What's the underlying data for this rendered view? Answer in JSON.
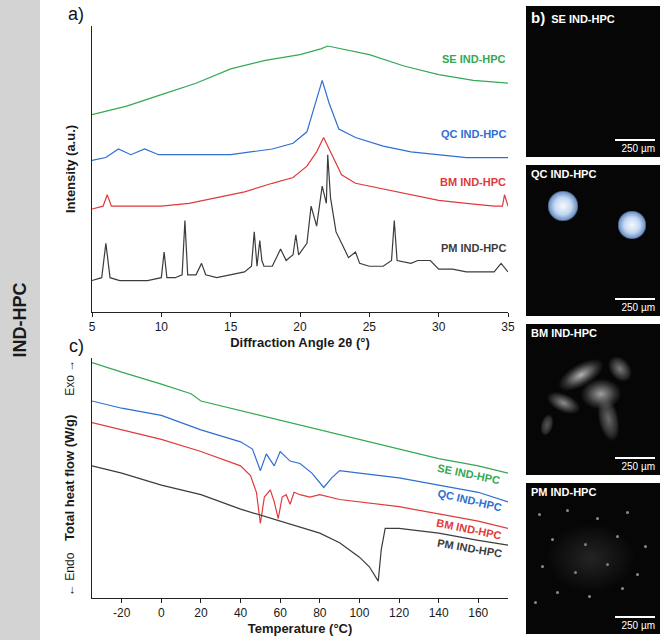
{
  "side_label": "IND-HPC",
  "chart_data": [
    {
      "type": "line",
      "panel": "a)",
      "xlabel": "Diffraction Angle 2θ (°)",
      "ylabel": "Intensity (a.u.)",
      "xlim": [
        5,
        35
      ],
      "xticks": [
        5,
        10,
        15,
        20,
        25,
        30,
        35
      ],
      "ylim": [
        0,
        100
      ],
      "yticks": [],
      "tick_labels": "x",
      "series": [
        {
          "name": "SE IND-HPC",
          "color": "#34a853",
          "x": [
            5,
            7.5,
            10,
            12.5,
            15,
            17.5,
            20,
            21.5,
            22,
            23,
            25,
            27.5,
            30,
            32.5,
            35
          ],
          "values": [
            69,
            72,
            76,
            80,
            85,
            88,
            90,
            92,
            93,
            92,
            90,
            86,
            83,
            81,
            80
          ]
        },
        {
          "name": "QC IND-HPC",
          "color": "#2e6fd1",
          "x": [
            5,
            6,
            6.9,
            7.8,
            8.8,
            9.8,
            12,
            15,
            18,
            19.5,
            20.5,
            21.1,
            21.6,
            22.1,
            22.8,
            24,
            26,
            28,
            30,
            32,
            35
          ],
          "values": [
            53,
            54,
            57,
            55,
            57,
            55,
            55,
            55,
            57,
            59,
            63,
            73,
            81,
            73,
            64,
            61,
            58,
            56,
            55,
            54,
            54
          ]
        },
        {
          "name": "BM IND-HPC",
          "color": "#e03a3a",
          "x": [
            5,
            5.8,
            6.1,
            6.4,
            8,
            10,
            12,
            14,
            16,
            18,
            19.5,
            20.5,
            21.2,
            21.7,
            22.2,
            23,
            24,
            26,
            28,
            30,
            32,
            34,
            34.6,
            34.75,
            35
          ],
          "values": [
            36,
            37,
            41,
            37,
            37,
            37,
            38,
            40,
            42,
            45,
            47,
            51,
            56,
            61,
            56,
            48,
            45,
            43,
            41,
            39,
            38,
            37,
            37,
            41,
            37
          ]
        },
        {
          "name": "PM IND-HPC",
          "color": "#3c3c3c",
          "x": [
            5,
            5.7,
            6.0,
            6.3,
            7,
            8,
            9,
            10,
            10.2,
            10.4,
            11,
            11.5,
            11.7,
            11.9,
            12.5,
            12.9,
            13.2,
            14,
            15,
            16,
            16.5,
            16.7,
            16.9,
            17.1,
            17.25,
            17.4,
            18,
            18.6,
            19,
            19.5,
            19.7,
            19.9,
            20.5,
            20.8,
            21.2,
            21.6,
            21.9,
            22.0,
            22.2,
            22.6,
            23,
            23.5,
            24,
            24.3,
            25,
            26,
            26.6,
            26.8,
            27,
            28,
            28.5,
            29.4,
            30,
            31,
            32,
            33,
            34,
            34.5,
            35
          ],
          "values": [
            11,
            12,
            24,
            12,
            11,
            11,
            11,
            12,
            21,
            12,
            12,
            13,
            32,
            13,
            13,
            17,
            13,
            12,
            13,
            14,
            16,
            28,
            16,
            25,
            18,
            16,
            16,
            22,
            18,
            20,
            27,
            20,
            24,
            37,
            30,
            44,
            38,
            55,
            40,
            28,
            24,
            19,
            21,
            17,
            16,
            16,
            18,
            32,
            18,
            17,
            18,
            18,
            15,
            15,
            14,
            14,
            14,
            17,
            14
          ]
        }
      ]
    },
    {
      "type": "line",
      "panel": "c)",
      "xlabel": "Temperature (°C)",
      "ylabel": "Total heat flow (W/g)",
      "annotations": [
        "Exo →",
        "← Endo"
      ],
      "xlim": [
        -35,
        175
      ],
      "xticks": [
        -20,
        0,
        20,
        40,
        60,
        80,
        100,
        120,
        140,
        160
      ],
      "ylim": [
        0,
        100
      ],
      "yticks": [],
      "tick_labels": "x",
      "series": [
        {
          "name": "SE IND-HPC",
          "color": "#34a853",
          "x": [
            -35,
            -20,
            0,
            15,
            20,
            40,
            60,
            80,
            100,
            120,
            140,
            160,
            175
          ],
          "values": [
            98,
            94,
            89,
            85,
            82,
            78,
            74,
            70,
            66,
            62,
            58,
            55,
            52
          ]
        },
        {
          "name": "QC IND-HPC",
          "color": "#2e6fd1",
          "x": [
            -35,
            -20,
            0,
            20,
            40,
            46,
            50,
            53,
            57,
            60,
            65,
            70,
            76,
            82,
            86,
            90,
            100,
            120,
            140,
            160,
            175
          ],
          "values": [
            82,
            79,
            76,
            70,
            65,
            62,
            53,
            60,
            55,
            61,
            57,
            56,
            52,
            46,
            50,
            53,
            52,
            50,
            47,
            44,
            40
          ]
        },
        {
          "name": "BM IND-HPC",
          "color": "#e03a3a",
          "x": [
            -35,
            -20,
            0,
            20,
            40,
            45,
            48,
            50,
            52,
            55,
            57,
            59,
            61,
            63,
            65,
            67,
            70,
            75,
            80,
            90,
            100,
            120,
            140,
            160,
            175
          ],
          "values": [
            73,
            70,
            66,
            61,
            55,
            51,
            44,
            31,
            42,
            45,
            40,
            33,
            42,
            43,
            39,
            44,
            43,
            42,
            43,
            41,
            40,
            38,
            35,
            32,
            29
          ]
        },
        {
          "name": "PM IND-HPC",
          "color": "#3c3c3c",
          "x": [
            -35,
            -20,
            0,
            20,
            40,
            60,
            80,
            90,
            95,
            100,
            105,
            108,
            109.5,
            111,
            113,
            120,
            140,
            160,
            175
          ],
          "values": [
            55,
            52,
            47,
            43,
            37,
            32,
            27,
            23,
            20,
            17,
            13,
            9,
            7,
            20,
            29,
            29,
            27,
            24,
            22
          ]
        }
      ]
    }
  ],
  "micrographs": {
    "panel": "b)",
    "images": [
      {
        "label": "SE IND-HPC",
        "scale_bar": "250 µm"
      },
      {
        "label": "QC IND-HPC",
        "scale_bar": "250 µm"
      },
      {
        "label": "BM IND-HPC",
        "scale_bar": "250 µm"
      },
      {
        "label": "PM IND-HPC",
        "scale_bar": "250 µm"
      }
    ]
  }
}
